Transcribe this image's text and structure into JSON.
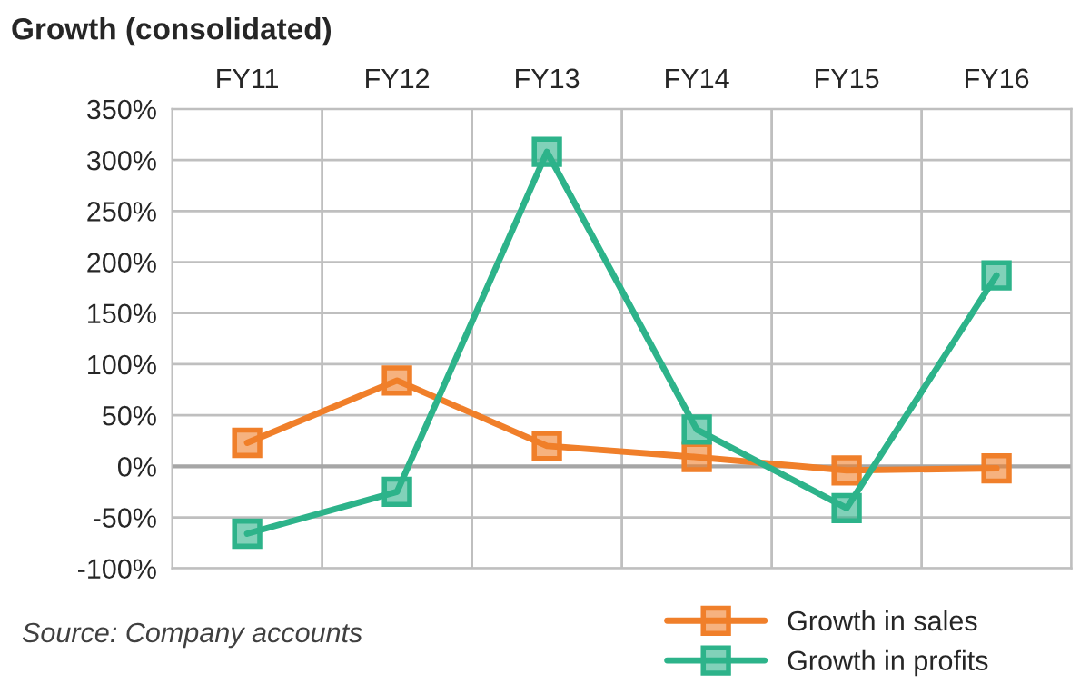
{
  "chart_data": {
    "type": "line",
    "title": "Growth (consolidated)",
    "categories": [
      "FY11",
      "FY12",
      "FY13",
      "FY14",
      "FY15",
      "FY16"
    ],
    "series": [
      {
        "name": "Growth in sales",
        "color": "#f07f2a",
        "values": [
          23,
          84,
          20,
          9,
          -4,
          -2
        ]
      },
      {
        "name": "Growth in profits",
        "color": "#2db38a",
        "values": [
          -66,
          -25,
          308,
          36,
          -41,
          187
        ]
      }
    ],
    "ylim": [
      -100,
      350
    ],
    "yticks": [
      {
        "value": -100,
        "label": "-100%"
      },
      {
        "value": -50,
        "label": "-50%"
      },
      {
        "value": 0,
        "label": "0%"
      },
      {
        "value": 50,
        "label": "50%"
      },
      {
        "value": 100,
        "label": "100%"
      },
      {
        "value": 150,
        "label": "150%"
      },
      {
        "value": 200,
        "label": "200%"
      },
      {
        "value": 250,
        "label": "250%"
      },
      {
        "value": 300,
        "label": "300%"
      },
      {
        "value": 350,
        "label": "350%"
      }
    ],
    "ref_lines": [
      {
        "axis": "y",
        "value": 0,
        "color": "#a6a6a6"
      }
    ],
    "grid": true,
    "legend": "bottom right",
    "marker": "square",
    "line_style": "solid",
    "annotations": [
      "Source: Company accounts"
    ]
  }
}
